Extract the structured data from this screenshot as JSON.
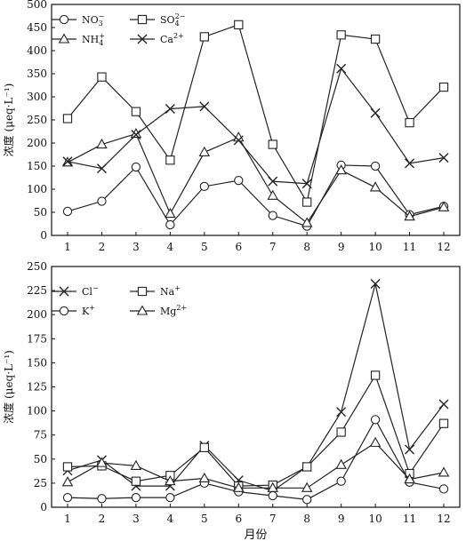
{
  "chart_data": [
    {
      "type": "line",
      "ylabel": "浓度 (μeq·L⁻¹)",
      "xlabel": "",
      "x": [
        1,
        2,
        3,
        4,
        5,
        6,
        7,
        8,
        9,
        10,
        11,
        12
      ],
      "ylim": [
        0,
        500
      ],
      "yticks": [
        0,
        50,
        100,
        150,
        200,
        250,
        300,
        350,
        400,
        450,
        500
      ],
      "grid": false,
      "legend": "top-left",
      "series": [
        {
          "name": "NO₃⁻",
          "base": "NO",
          "sub": "3",
          "sup": "−",
          "marker": "circle",
          "values": [
            52,
            74,
            148,
            23,
            106,
            119,
            43,
            20,
            152,
            150,
            45,
            63
          ]
        },
        {
          "name": "SO₄²⁻",
          "base": "SO",
          "sub": "4",
          "sup": "2−",
          "marker": "square",
          "values": [
            253,
            343,
            268,
            163,
            430,
            456,
            197,
            72,
            434,
            425,
            244,
            321
          ]
        },
        {
          "name": "NH₄⁺",
          "base": "NH",
          "sub": "4",
          "sup": "+",
          "marker": "triangle",
          "values": [
            158,
            197,
            220,
            47,
            180,
            212,
            86,
            27,
            141,
            104,
            41,
            61
          ]
        },
        {
          "name": "Ca²⁺",
          "base": "Ca",
          "sub": "",
          "sup": "2+",
          "marker": "x",
          "values": [
            160,
            145,
            218,
            274,
            279,
            206,
            117,
            112,
            361,
            265,
            156,
            168
          ]
        }
      ]
    },
    {
      "type": "line",
      "ylabel": "浓度 (μeq·L⁻¹)",
      "xlabel": "月份",
      "x": [
        1,
        2,
        3,
        4,
        5,
        6,
        7,
        8,
        9,
        10,
        11,
        12
      ],
      "ylim": [
        0,
        250
      ],
      "yticks": [
        0,
        25,
        50,
        75,
        100,
        125,
        150,
        175,
        200,
        225,
        250
      ],
      "grid": false,
      "legend": "top-left",
      "series": [
        {
          "name": "Cl⁻",
          "base": "Cl",
          "sub": "",
          "sup": "−",
          "marker": "x",
          "values": [
            38,
            49,
            22,
            22,
            64,
            28,
            17,
            42,
            99,
            232,
            60,
            107
          ]
        },
        {
          "name": "Na⁺",
          "base": "Na",
          "sub": "",
          "sup": "+",
          "marker": "square",
          "values": [
            42,
            43,
            27,
            33,
            62,
            22,
            23,
            42,
            78,
            137,
            35,
            87
          ]
        },
        {
          "name": "K⁺",
          "base": "K",
          "sub": "",
          "sup": "+",
          "marker": "circle",
          "values": [
            10,
            9,
            10,
            10,
            25,
            16,
            12,
            8,
            27,
            91,
            26,
            19
          ]
        },
        {
          "name": "Mg²⁺",
          "base": "Mg",
          "sub": "",
          "sup": "2+",
          "marker": "triangle",
          "values": [
            26,
            46,
            43,
            27,
            30,
            20,
            20,
            20,
            44,
            67,
            29,
            36
          ]
        }
      ]
    }
  ]
}
